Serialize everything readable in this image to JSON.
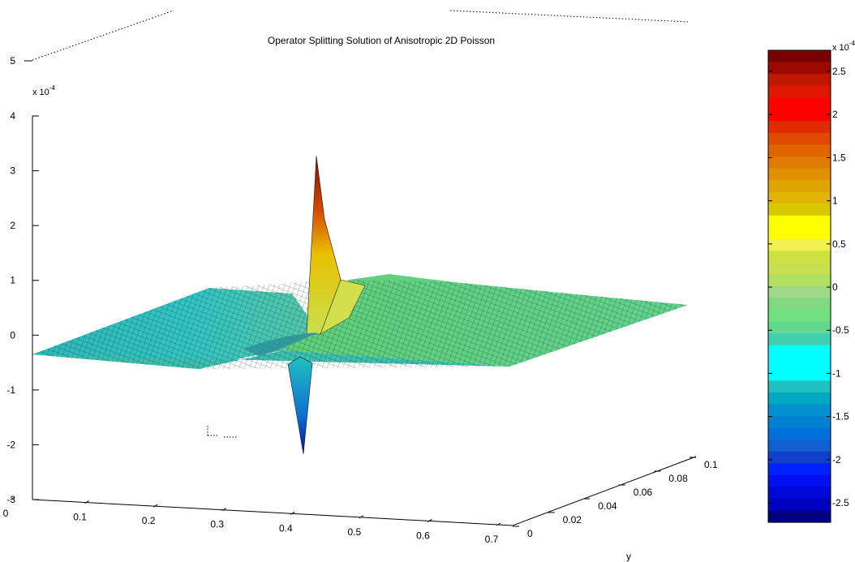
{
  "chart_data": {
    "type": "surface",
    "title": "Operator Splitting Solution of Anisotropic 2D Poisson",
    "xlabel": "",
    "ylabel": "y",
    "zlabel": "",
    "x_ticks": [
      "0",
      "0.1",
      "0.2",
      "0.3",
      "0.4",
      "0.5",
      "0.6",
      "0.7"
    ],
    "y_ticks": [
      "0",
      "0.02",
      "0.04",
      "0.06",
      "0.08",
      "0.1"
    ],
    "z_ticks": [
      "-3",
      "-2",
      "-1",
      "0",
      "1",
      "2",
      "3",
      "4"
    ],
    "z_top_tick": "5",
    "z_exponent": "x 10",
    "z_exponent_power": "-4",
    "xlim": [
      0,
      0.7
    ],
    "ylim": [
      0,
      0.1
    ],
    "zlim": [
      -0.0003,
      0.0004
    ],
    "surface_peaks": {
      "max": {
        "x": 0.35,
        "y": 0.05,
        "z": 0.00033
      },
      "min": {
        "x": 0.35,
        "y": 0.05,
        "z": -0.00022
      }
    },
    "colorbar": {
      "colormap": "jet",
      "range": [
        -0.00027,
        0.00027
      ],
      "ticks": [
        "2.5",
        "2",
        "1.5",
        "1",
        "0.5",
        "0",
        "-0.5",
        "-1",
        "-1.5",
        "-2",
        "-2.5"
      ],
      "exponent": "x 10",
      "exponent_power": "-4",
      "bands": [
        "#7a0000",
        "#9a0a00",
        "#c01800",
        "#e01800",
        "#ff0000",
        "#ff0000",
        "#e02a00",
        "#e04a00",
        "#e06400",
        "#e07a00",
        "#e09000",
        "#e0a400",
        "#e0b400",
        "#d8c800",
        "#ffff00",
        "#ffff00",
        "#f0f050",
        "#d0e040",
        "#c8e050",
        "#b0e060",
        "#a0d888",
        "#80d880",
        "#70e080",
        "#60d890",
        "#40d0b0",
        "#00ffff",
        "#00ffff",
        "#00ffff",
        "#20c0c0",
        "#00a8c0",
        "#0090d0",
        "#0080d0",
        "#0070d8",
        "#1060d0",
        "#1040c8",
        "#0020ff",
        "#0010f0",
        "#0008d8",
        "#0000c0",
        "#000080"
      ]
    }
  }
}
